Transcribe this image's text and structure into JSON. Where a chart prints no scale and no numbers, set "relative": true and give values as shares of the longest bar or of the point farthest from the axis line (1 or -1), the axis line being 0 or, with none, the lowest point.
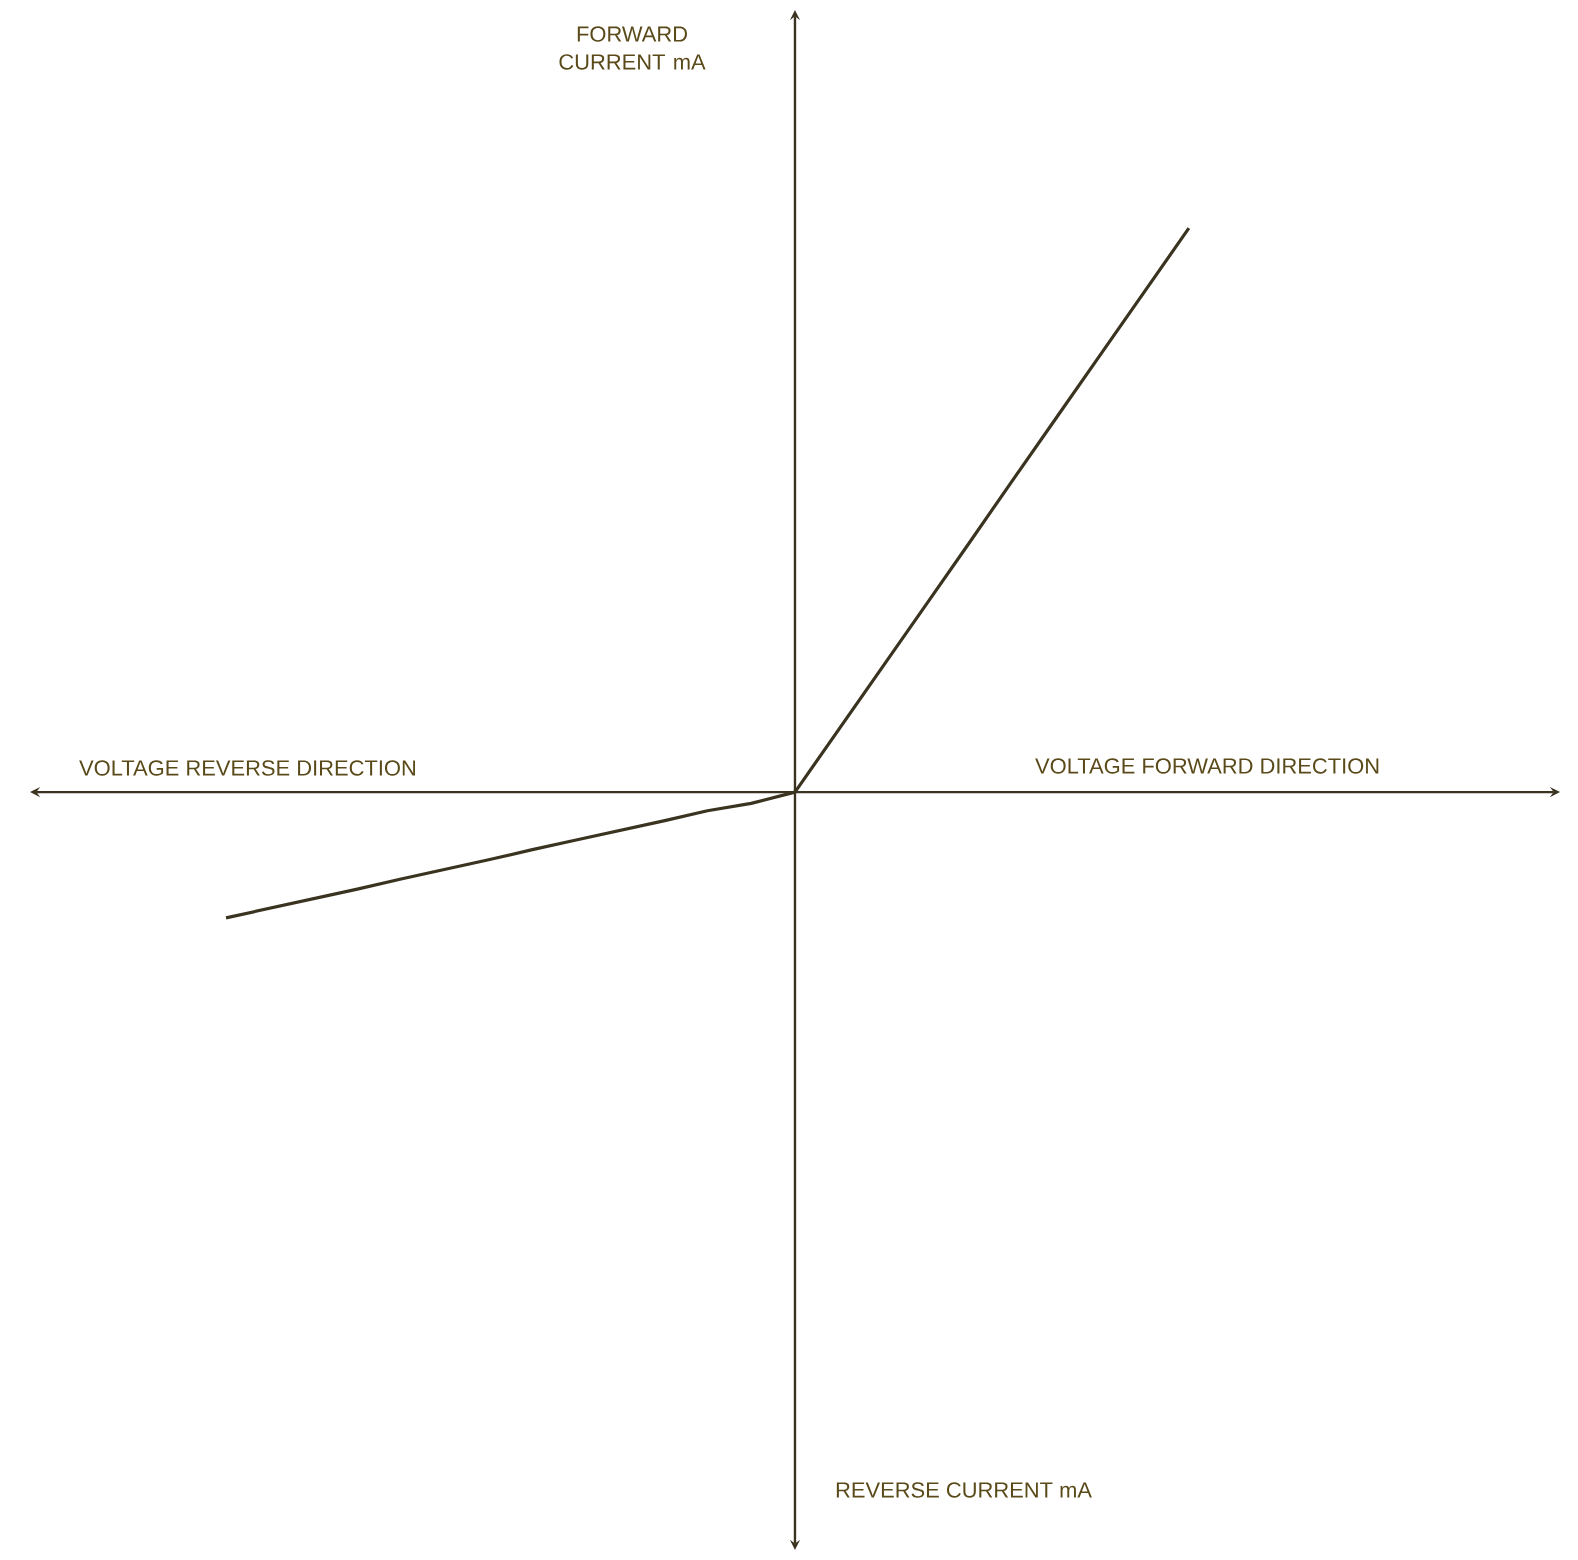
{
  "chart_data": {
    "type": "line",
    "relative": true,
    "xlabel": "VOLTAGE FORWARD DIRECTION",
    "annotations": [
      "FORWARD CURRENT mA",
      "VOLTAGE REVERSE DIRECTION",
      "REVERSE CURRENT mA"
    ],
    "categories": [
      null,
      null,
      null,
      null,
      null,
      null,
      null,
      null,
      null,
      null,
      null,
      null,
      null,
      null,
      null,
      null,
      null,
      null,
      null,
      null,
      null,
      null,
      null
    ],
    "series": [
      {
        "color": "#3a3320",
        "values": [
          -0.223,
          -0.206,
          -0.189,
          -0.172,
          -0.154,
          -0.137,
          -0.12,
          -0.102,
          -0.085,
          -0.068,
          -0.051,
          -0.033,
          -0.02,
          0,
          0.111,
          0.222,
          0.333,
          0.444,
          0.556,
          0.667,
          0.778,
          0.889,
          1
        ]
      }
    ],
    "marker": "none",
    "line_style": "solid",
    "legend": false,
    "grid": false
  }
}
